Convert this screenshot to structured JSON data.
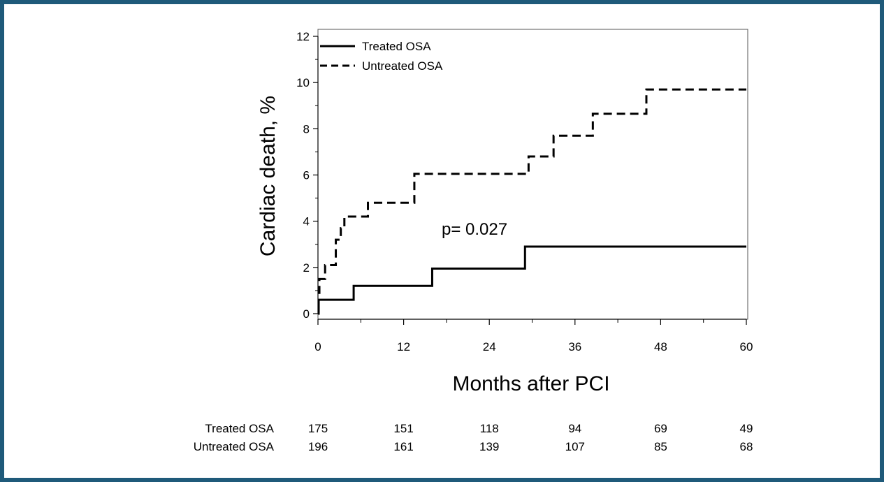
{
  "frame_color": "#1f5a7a",
  "chart_data": {
    "type": "line",
    "title": "",
    "xlabel": "Months after PCI",
    "ylabel": "Cardiac death, %",
    "xlim": [
      0,
      60
    ],
    "ylim": [
      0,
      12
    ],
    "xticks": [
      0,
      12,
      24,
      36,
      48,
      60
    ],
    "xtick_labels": [
      "0",
      "12",
      "24",
      "36",
      "48",
      "60"
    ],
    "yticks": [
      0,
      2,
      4,
      6,
      8,
      10,
      12
    ],
    "ytick_labels": [
      "0",
      "2",
      "4",
      "6",
      "8",
      "10",
      "12"
    ],
    "grid": false,
    "legend": "top-left",
    "annotation": "p= 0.027",
    "series": [
      {
        "name": "Treated OSA",
        "style": "solid",
        "steps": [
          [
            0,
            0
          ],
          [
            0.1,
            0.6
          ],
          [
            5,
            1.2
          ],
          [
            16,
            1.95
          ],
          [
            29,
            2.9
          ],
          [
            60,
            2.9
          ]
        ]
      },
      {
        "name": "Untreated OSA",
        "style": "dashed",
        "steps": [
          [
            0,
            0.9
          ],
          [
            0.2,
            1.5
          ],
          [
            1,
            2.1
          ],
          [
            2.5,
            3.2
          ],
          [
            3.2,
            3.7
          ],
          [
            3.7,
            4.2
          ],
          [
            7,
            4.8
          ],
          [
            13.5,
            6.05
          ],
          [
            29.5,
            6.8
          ],
          [
            33,
            7.7
          ],
          [
            38.5,
            8.65
          ],
          [
            46,
            9.7
          ],
          [
            60,
            9.7
          ]
        ]
      }
    ],
    "risk_table": {
      "rows": [
        {
          "label": "Treated OSA",
          "values": [
            "175",
            "151",
            "118",
            "94",
            "69",
            "49"
          ]
        },
        {
          "label": "Untreated OSA",
          "values": [
            "196",
            "161",
            "139",
            "107",
            "85",
            "68"
          ]
        }
      ]
    }
  }
}
